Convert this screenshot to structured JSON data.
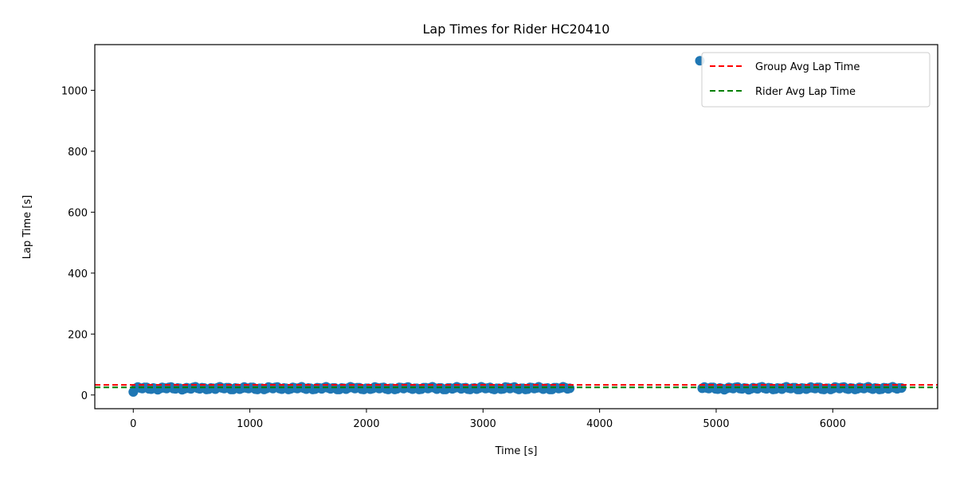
{
  "chart_data": {
    "type": "scatter",
    "title": "Lap Times for Rider HC20410",
    "xlabel": "Time [s]",
    "ylabel": "Lap Time [s]",
    "xlim": [
      -330,
      6900
    ],
    "ylim": [
      -45,
      1150
    ],
    "xticks": [
      0,
      1000,
      2000,
      3000,
      4000,
      5000,
      6000
    ],
    "yticks": [
      0,
      200,
      400,
      600,
      800,
      1000
    ],
    "grid": false,
    "legend_position": "top-right",
    "colors": {
      "points": "#1f77b4",
      "group_avg": "#ff0000",
      "rider_avg": "#008000"
    },
    "reference_lines": [
      {
        "name": "Group Avg Lap Time",
        "y": 33,
        "color": "#ff0000",
        "style": "dashed"
      },
      {
        "name": "Rider Avg Lap Time",
        "y": 25,
        "color": "#008000",
        "style": "dashed"
      }
    ],
    "outlier": {
      "x": 4860,
      "y": 1097
    },
    "first_point": {
      "x": 0,
      "y": 10
    },
    "segments": [
      {
        "x_start": 20,
        "x_end": 3750,
        "step": 19,
        "y_base": 22
      },
      {
        "x_start": 4880,
        "x_end": 6600,
        "step": 19,
        "y_base": 22
      }
    ]
  }
}
